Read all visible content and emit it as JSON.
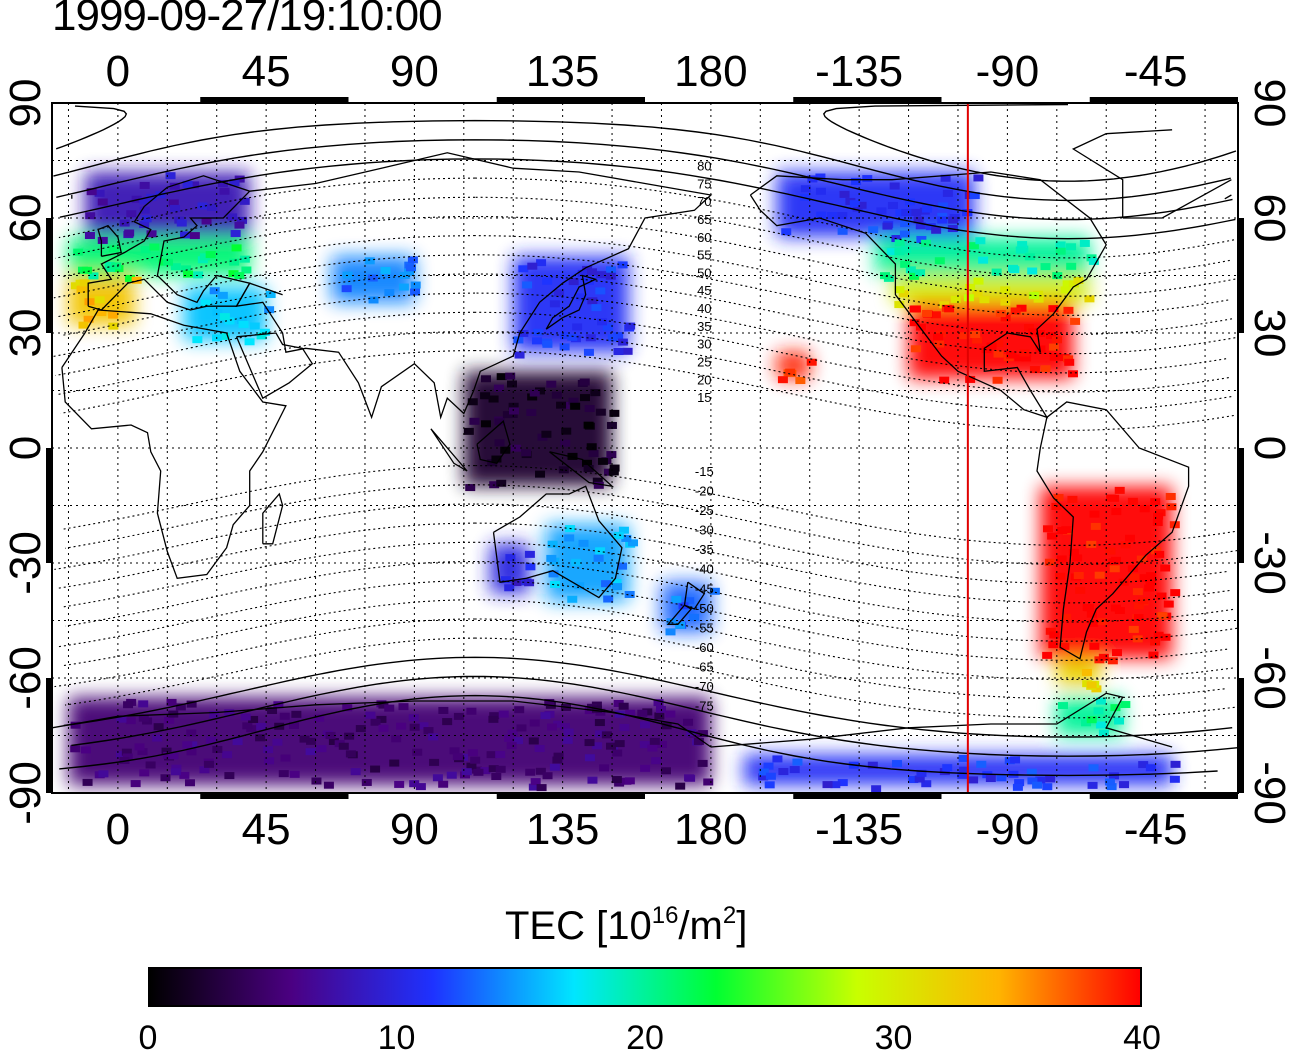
{
  "timestamp": "1999-09-27/19:10:00",
  "map": {
    "projection": "cylindrical equidistant",
    "lon_range": [
      -20,
      340
    ],
    "lat_range": [
      -90,
      90
    ],
    "x_tick_labels": [
      "0",
      "45",
      "90",
      "135",
      "180",
      "-135",
      "-90",
      "-45"
    ],
    "y_tick_labels": [
      "90",
      "60",
      "30",
      "0",
      "-30",
      "-60",
      "-90"
    ],
    "grid": "dotted 15 deg",
    "terminator_longitude": -102,
    "contour_labels_north": [
      "80",
      "75",
      "70",
      "65",
      "60",
      "55",
      "50",
      "45",
      "40",
      "35",
      "30",
      "25",
      "20",
      "15"
    ],
    "contour_labels_south": [
      "-15",
      "-20",
      "-25",
      "-30",
      "-35",
      "-40",
      "-45",
      "-50",
      "-55",
      "-60",
      "-65",
      "-70",
      "-75"
    ]
  },
  "colorbar": {
    "title": "TEC  [10",
    "title_sup": "16",
    "title_mid": "/m",
    "title_sup2": "2",
    "title_end": "]",
    "min": 0,
    "max": 40,
    "ticks": [
      "0",
      "10",
      "20",
      "30",
      "40"
    ],
    "colors": [
      "#000000",
      "#4b0082",
      "#1e32ff",
      "#00e6ff",
      "#00ff32",
      "#c8ff00",
      "#ffb400",
      "#ff0000"
    ]
  },
  "tec_regions": [
    {
      "name": "europe-north",
      "lon": [
        -10,
        40
      ],
      "lat": [
        55,
        72
      ],
      "tec": 8
    },
    {
      "name": "europe-central",
      "lon": [
        -15,
        40
      ],
      "lat": [
        45,
        55
      ],
      "tec": 21
    },
    {
      "name": "iberia-mediterranean",
      "lon": [
        -15,
        5
      ],
      "lat": [
        32,
        45
      ],
      "tec": 33
    },
    {
      "name": "mediterranean-east",
      "lon": [
        20,
        45
      ],
      "lat": [
        28,
        42
      ],
      "tec": 16
    },
    {
      "name": "central-asia",
      "lon": [
        65,
        90
      ],
      "lat": [
        38,
        50
      ],
      "tec": 14
    },
    {
      "name": "japan-china",
      "lon": [
        120,
        155
      ],
      "lat": [
        25,
        50
      ],
      "tec": 11
    },
    {
      "name": "alaska-canada-west",
      "lon": [
        -160,
        -100
      ],
      "lat": [
        55,
        72
      ],
      "tec": 11
    },
    {
      "name": "north-america-north",
      "lon": [
        -130,
        -65
      ],
      "lat": [
        45,
        55
      ],
      "tec": 20
    },
    {
      "name": "north-america-mid",
      "lon": [
        -125,
        -65
      ],
      "lat": [
        38,
        45
      ],
      "tec": 30
    },
    {
      "name": "north-america-south",
      "lon": [
        -120,
        -70
      ],
      "lat": [
        18,
        38
      ],
      "tec": 40
    },
    {
      "name": "hawaii",
      "lon": [
        -160,
        -150
      ],
      "lat": [
        18,
        25
      ],
      "tec": 39
    },
    {
      "name": "south-america",
      "lon": [
        -80,
        -40
      ],
      "lat": [
        -55,
        -10
      ],
      "tec": 40
    },
    {
      "name": "south-america-tip",
      "lon": [
        -75,
        -62
      ],
      "lat": [
        -62,
        -55
      ],
      "tec": 32
    },
    {
      "name": "antarctic-peninsula",
      "lon": [
        -75,
        -55
      ],
      "lat": [
        -75,
        -65
      ],
      "tec": 20
    },
    {
      "name": "australia-west",
      "lon": [
        113,
        125
      ],
      "lat": [
        -38,
        -25
      ],
      "tec": 10
    },
    {
      "name": "australia-east",
      "lon": [
        130,
        155
      ],
      "lat": [
        -40,
        -20
      ],
      "tec": 15
    },
    {
      "name": "new-zealand",
      "lon": [
        165,
        180
      ],
      "lat": [
        -48,
        -35
      ],
      "tec": 13
    },
    {
      "name": "maritime-se-asia",
      "lon": [
        105,
        150
      ],
      "lat": [
        -10,
        20
      ],
      "tec": 2
    },
    {
      "name": "antarctica-east",
      "lon": [
        -15,
        180
      ],
      "lat": [
        -88,
        -65
      ],
      "tec": 5
    },
    {
      "name": "antarctica-west",
      "lon": [
        -170,
        -40
      ],
      "lat": [
        -88,
        -80
      ],
      "tec": 11
    }
  ]
}
